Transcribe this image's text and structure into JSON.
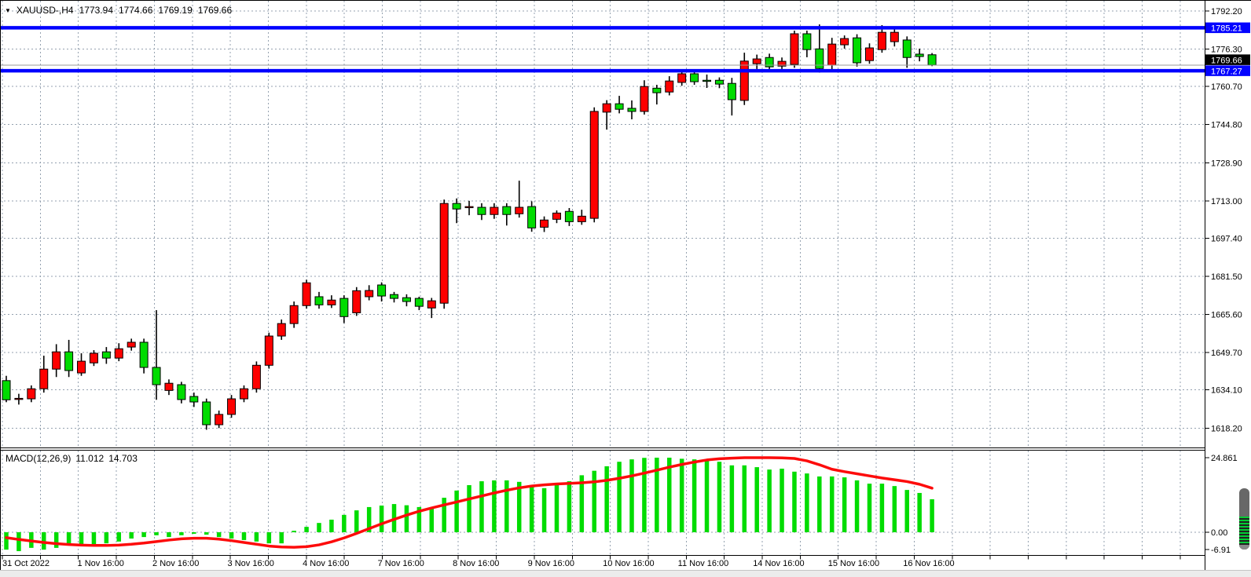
{
  "title": {
    "dropdown_icon": "▼",
    "symbol": "XAUUSD-,H4",
    "open": "1773.94",
    "high": "1774.66",
    "low": "1769.19",
    "close": "1769.66"
  },
  "macd_label": {
    "name": "MACD(12,26,9)",
    "macd_value": "11.012",
    "signal_value": "14.703"
  },
  "price_axis": {
    "tick_labels": [
      "1792.20",
      "1776.30",
      "1760.70",
      "1744.80",
      "1728.90",
      "1713.00",
      "1697.40",
      "1681.50",
      "1665.60",
      "1649.70",
      "1634.10",
      "1618.20"
    ],
    "tick_values": [
      1792.2,
      1776.3,
      1760.7,
      1744.8,
      1728.9,
      1713.0,
      1697.4,
      1681.5,
      1665.6,
      1649.7,
      1634.1,
      1618.2
    ]
  },
  "macd_axis": {
    "tick_labels": [
      "24.861",
      "0.00",
      "-6.91"
    ],
    "tick_values": [
      24.861,
      0.0,
      -6.91
    ]
  },
  "hlines": [
    {
      "value": 1785.21,
      "tag": "1785.21"
    },
    {
      "value": 1767.27,
      "tag": "1767.27"
    }
  ],
  "current_price": {
    "value": 1769.66,
    "tag": "1769.66"
  },
  "time_axis": {
    "labels": [
      {
        "candle": 0,
        "text": "31 Oct 2022"
      },
      {
        "candle": 6,
        "text": "1 Nov 16:00"
      },
      {
        "candle": 12,
        "text": "2 Nov 16:00"
      },
      {
        "candle": 18,
        "text": "3 Nov 16:00"
      },
      {
        "candle": 24,
        "text": "4 Nov 16:00"
      },
      {
        "candle": 30,
        "text": "7 Nov 16:00"
      },
      {
        "candle": 36,
        "text": "8 Nov 16:00"
      },
      {
        "candle": 42,
        "text": "9 Nov 16:00"
      },
      {
        "candle": 48,
        "text": "10 Nov 16:00"
      },
      {
        "candle": 54,
        "text": "11 Nov 16:00"
      },
      {
        "candle": 60,
        "text": "14 Nov 16:00"
      },
      {
        "candle": 66,
        "text": "15 Nov 16:00"
      },
      {
        "candle": 72,
        "text": "16 Nov 16:00"
      }
    ]
  },
  "colors": {
    "background": "#ffffff",
    "bull": "#fe0000",
    "bear": "#00dc00",
    "wick": "#000000",
    "grid": "#95a2b0",
    "hline": "#0303ff",
    "bid_line": "#9a9a9a",
    "signal": "#fd0b0b",
    "histogram": "#00dc00",
    "axis_text": "#000000",
    "tag_hline_bg": "#0303ff",
    "tag_current_bg": "#000000",
    "tag_text": "#ffffff"
  },
  "chart_data": {
    "type": "candlestick_with_macd",
    "symbol": "XAUUSD",
    "timeframe": "H4",
    "note": "bullish candles are red, bearish candles are green in this theme",
    "ylim": [
      1613.0,
      1796.5
    ],
    "price_gridlines": [
      1792.2,
      1776.3,
      1760.7,
      1744.8,
      1728.9,
      1713.0,
      1697.4,
      1681.5,
      1665.6,
      1649.7,
      1634.1,
      1618.2
    ],
    "horizontal_lines": [
      1785.21,
      1767.27
    ],
    "last_price": 1769.66,
    "candles": [
      [
        1638.0,
        1640.0,
        1629.0,
        1630.0
      ],
      [
        1630.3,
        1632.5,
        1628.0,
        1630.6
      ],
      [
        1630.4,
        1636.0,
        1629.0,
        1634.6
      ],
      [
        1634.6,
        1648.4,
        1633.0,
        1642.8
      ],
      [
        1642.8,
        1653.2,
        1639.5,
        1650.0
      ],
      [
        1650.0,
        1655.0,
        1639.5,
        1642.2
      ],
      [
        1641.2,
        1649.4,
        1640.0,
        1646.1
      ],
      [
        1645.4,
        1650.7,
        1644.1,
        1649.4
      ],
      [
        1650.0,
        1652.0,
        1645.0,
        1647.4
      ],
      [
        1647.4,
        1653.6,
        1646.1,
        1651.3
      ],
      [
        1652.0,
        1655.5,
        1650.5,
        1654.0
      ],
      [
        1654.0,
        1655.5,
        1641.0,
        1643.5
      ],
      [
        1643.5,
        1667.4,
        1630.0,
        1636.3
      ],
      [
        1633.9,
        1638.5,
        1632.0,
        1636.9
      ],
      [
        1636.3,
        1637.5,
        1628.5,
        1630.1
      ],
      [
        1631.4,
        1633.0,
        1627.0,
        1629.1
      ],
      [
        1629.1,
        1630.5,
        1617.5,
        1619.6
      ],
      [
        1619.6,
        1625.5,
        1618.2,
        1623.9
      ],
      [
        1623.9,
        1632.0,
        1622.5,
        1630.4
      ],
      [
        1630.4,
        1636.0,
        1629.0,
        1634.6
      ],
      [
        1634.6,
        1646.0,
        1633.0,
        1644.4
      ],
      [
        1644.4,
        1658.0,
        1643.0,
        1656.6
      ],
      [
        1656.6,
        1663.5,
        1655.0,
        1661.8
      ],
      [
        1661.8,
        1671.0,
        1660.0,
        1669.3
      ],
      [
        1669.3,
        1680.1,
        1668.0,
        1678.8
      ],
      [
        1673.0,
        1675.0,
        1668.0,
        1669.6
      ],
      [
        1669.6,
        1673.6,
        1668.3,
        1671.6
      ],
      [
        1672.3,
        1673.6,
        1662.0,
        1664.7
      ],
      [
        1666.3,
        1677.0,
        1665.0,
        1675.5
      ],
      [
        1673.0,
        1677.8,
        1671.5,
        1675.6
      ],
      [
        1677.9,
        1679.0,
        1671.0,
        1673.3
      ],
      [
        1673.9,
        1675.0,
        1670.6,
        1672.3
      ],
      [
        1672.6,
        1674.0,
        1669.0,
        1671.0
      ],
      [
        1672.3,
        1673.0,
        1667.4,
        1669.0
      ],
      [
        1668.3,
        1672.5,
        1664.1,
        1671.3
      ],
      [
        1670.3,
        1713.5,
        1668.0,
        1711.9
      ],
      [
        1711.9,
        1714.0,
        1703.7,
        1709.6
      ],
      [
        1710.3,
        1713.0,
        1707.0,
        1710.6
      ],
      [
        1710.3,
        1712.0,
        1705.0,
        1707.3
      ],
      [
        1707.3,
        1712.0,
        1705.5,
        1710.3
      ],
      [
        1710.6,
        1712.0,
        1702.7,
        1707.3
      ],
      [
        1707.6,
        1721.4,
        1706.0,
        1710.3
      ],
      [
        1710.6,
        1712.8,
        1700.1,
        1701.7
      ],
      [
        1702.0,
        1706.5,
        1700.0,
        1705.0
      ],
      [
        1705.3,
        1709.0,
        1703.7,
        1707.9
      ],
      [
        1708.6,
        1710.0,
        1702.5,
        1704.3
      ],
      [
        1704.3,
        1709.3,
        1703.0,
        1706.6
      ],
      [
        1705.7,
        1752.0,
        1704.0,
        1750.3
      ],
      [
        1750.0,
        1755.0,
        1742.7,
        1753.5
      ],
      [
        1753.5,
        1756.8,
        1749.5,
        1751.2
      ],
      [
        1751.6,
        1754.9,
        1747.0,
        1750.3
      ],
      [
        1750.3,
        1763.3,
        1749.0,
        1760.7
      ],
      [
        1760.0,
        1761.4,
        1753.2,
        1758.1
      ],
      [
        1758.4,
        1765.0,
        1757.0,
        1763.0
      ],
      [
        1762.4,
        1767.0,
        1761.0,
        1766.0
      ],
      [
        1766.0,
        1767.5,
        1761.4,
        1762.7
      ],
      [
        1763.3,
        1765.7,
        1760.1,
        1763.0
      ],
      [
        1763.3,
        1764.5,
        1760.0,
        1761.7
      ],
      [
        1762.0,
        1764.3,
        1748.6,
        1755.2
      ],
      [
        1754.9,
        1774.8,
        1753.0,
        1771.3
      ],
      [
        1770.2,
        1774.0,
        1768.0,
        1772.2
      ],
      [
        1772.8,
        1774.4,
        1767.0,
        1768.9
      ],
      [
        1769.2,
        1772.8,
        1768.0,
        1771.2
      ],
      [
        1769.9,
        1784.0,
        1768.5,
        1782.7
      ],
      [
        1782.7,
        1784.0,
        1772.9,
        1776.1
      ],
      [
        1776.4,
        1786.6,
        1766.5,
        1768.2
      ],
      [
        1769.6,
        1781.0,
        1766.9,
        1778.4
      ],
      [
        1778.1,
        1782.0,
        1776.5,
        1780.7
      ],
      [
        1781.0,
        1782.5,
        1769.0,
        1770.6
      ],
      [
        1771.5,
        1778.7,
        1770.2,
        1776.8
      ],
      [
        1776.1,
        1786.3,
        1774.8,
        1783.3
      ],
      [
        1779.4,
        1785.0,
        1777.4,
        1783.3
      ],
      [
        1780.1,
        1781.6,
        1768.5,
        1772.8
      ],
      [
        1774.2,
        1776.5,
        1771.2,
        1773.2
      ],
      [
        1773.94,
        1774.66,
        1769.19,
        1769.66
      ]
    ],
    "macd": {
      "params": "12,26,9",
      "last_macd": 11.012,
      "last_signal": 14.703,
      "ylim": [
        -6.91,
        24.861
      ],
      "histogram": [
        -5.8,
        -6.3,
        -5.2,
        -5.8,
        -5.2,
        -4.2,
        -4.7,
        -4.2,
        -3.7,
        -3.1,
        -2.1,
        -1.6,
        -1.0,
        -1.6,
        -1.0,
        -0.5,
        -0.8,
        -1.6,
        -2.1,
        -2.6,
        -3.1,
        -3.7,
        -3.7,
        0.5,
        1.8,
        3.1,
        4.2,
        5.8,
        7.3,
        8.4,
        8.9,
        9.4,
        9.0,
        8.4,
        7.9,
        11.5,
        13.9,
        15.7,
        17.0,
        17.3,
        17.3,
        16.8,
        15.2,
        14.7,
        16.0,
        17.0,
        19.0,
        20.5,
        22.0,
        23.5,
        24.3,
        24.8,
        24.861,
        24.861,
        24.5,
        24.3,
        24.0,
        23.5,
        22.3,
        22.3,
        21.7,
        20.9,
        21.2,
        20.2,
        19.6,
        18.6,
        18.6,
        18.3,
        17.3,
        16.2,
        16.2,
        15.4,
        14.1,
        13.1,
        11.012
      ],
      "signal": [
        -1.8,
        -2.4,
        -2.9,
        -3.4,
        -3.8,
        -4.1,
        -4.3,
        -4.4,
        -4.4,
        -4.3,
        -4.0,
        -3.6,
        -3.1,
        -2.6,
        -2.2,
        -2.0,
        -2.0,
        -2.3,
        -2.8,
        -3.4,
        -4.0,
        -4.6,
        -4.9,
        -5.0,
        -4.8,
        -4.2,
        -3.2,
        -1.9,
        -0.4,
        1.2,
        2.8,
        4.3,
        5.7,
        7.0,
        8.1,
        9.1,
        10.1,
        11.1,
        12.1,
        13.1,
        14.0,
        14.8,
        15.4,
        15.8,
        16.1,
        16.3,
        16.5,
        16.8,
        17.3,
        18.0,
        18.8,
        19.7,
        20.7,
        21.7,
        22.6,
        23.4,
        24.1,
        24.5,
        24.7,
        24.86,
        24.86,
        24.86,
        24.8,
        24.6,
        23.8,
        22.5,
        21.0,
        20.2,
        19.5,
        18.8,
        18.1,
        17.5,
        16.9,
        16.0,
        14.703
      ]
    }
  }
}
